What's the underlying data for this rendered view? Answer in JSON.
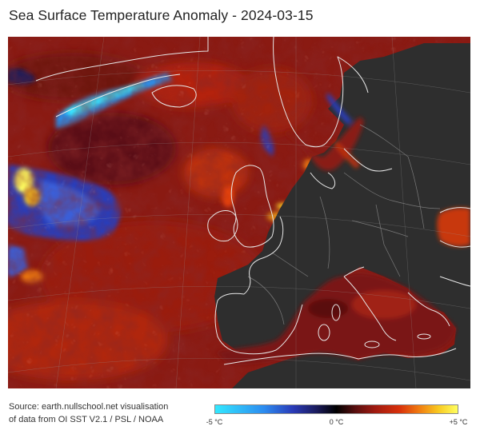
{
  "title": "Sea Surface Temperature Anomaly - 2024-03-15",
  "source_lines": [
    "Source: earth.nullschool.net visualisation",
    "of data from OI SST V2.1 / PSL / NOAA"
  ],
  "legend": {
    "min_label": "-5 °C",
    "mid_label": "0 °C",
    "max_label": "+5 °C",
    "colors": {
      "cold_extreme": "#33e8ff",
      "cold": "#2a3bb8",
      "neutral": "#000000",
      "warm": "#a01a10",
      "hot": "#f07a10",
      "hot_extreme": "#ffff60"
    }
  },
  "map": {
    "land_color": "#2e2e2e",
    "coastline_color": "#e8e8e8",
    "border_color": "#7a7a7a"
  }
}
